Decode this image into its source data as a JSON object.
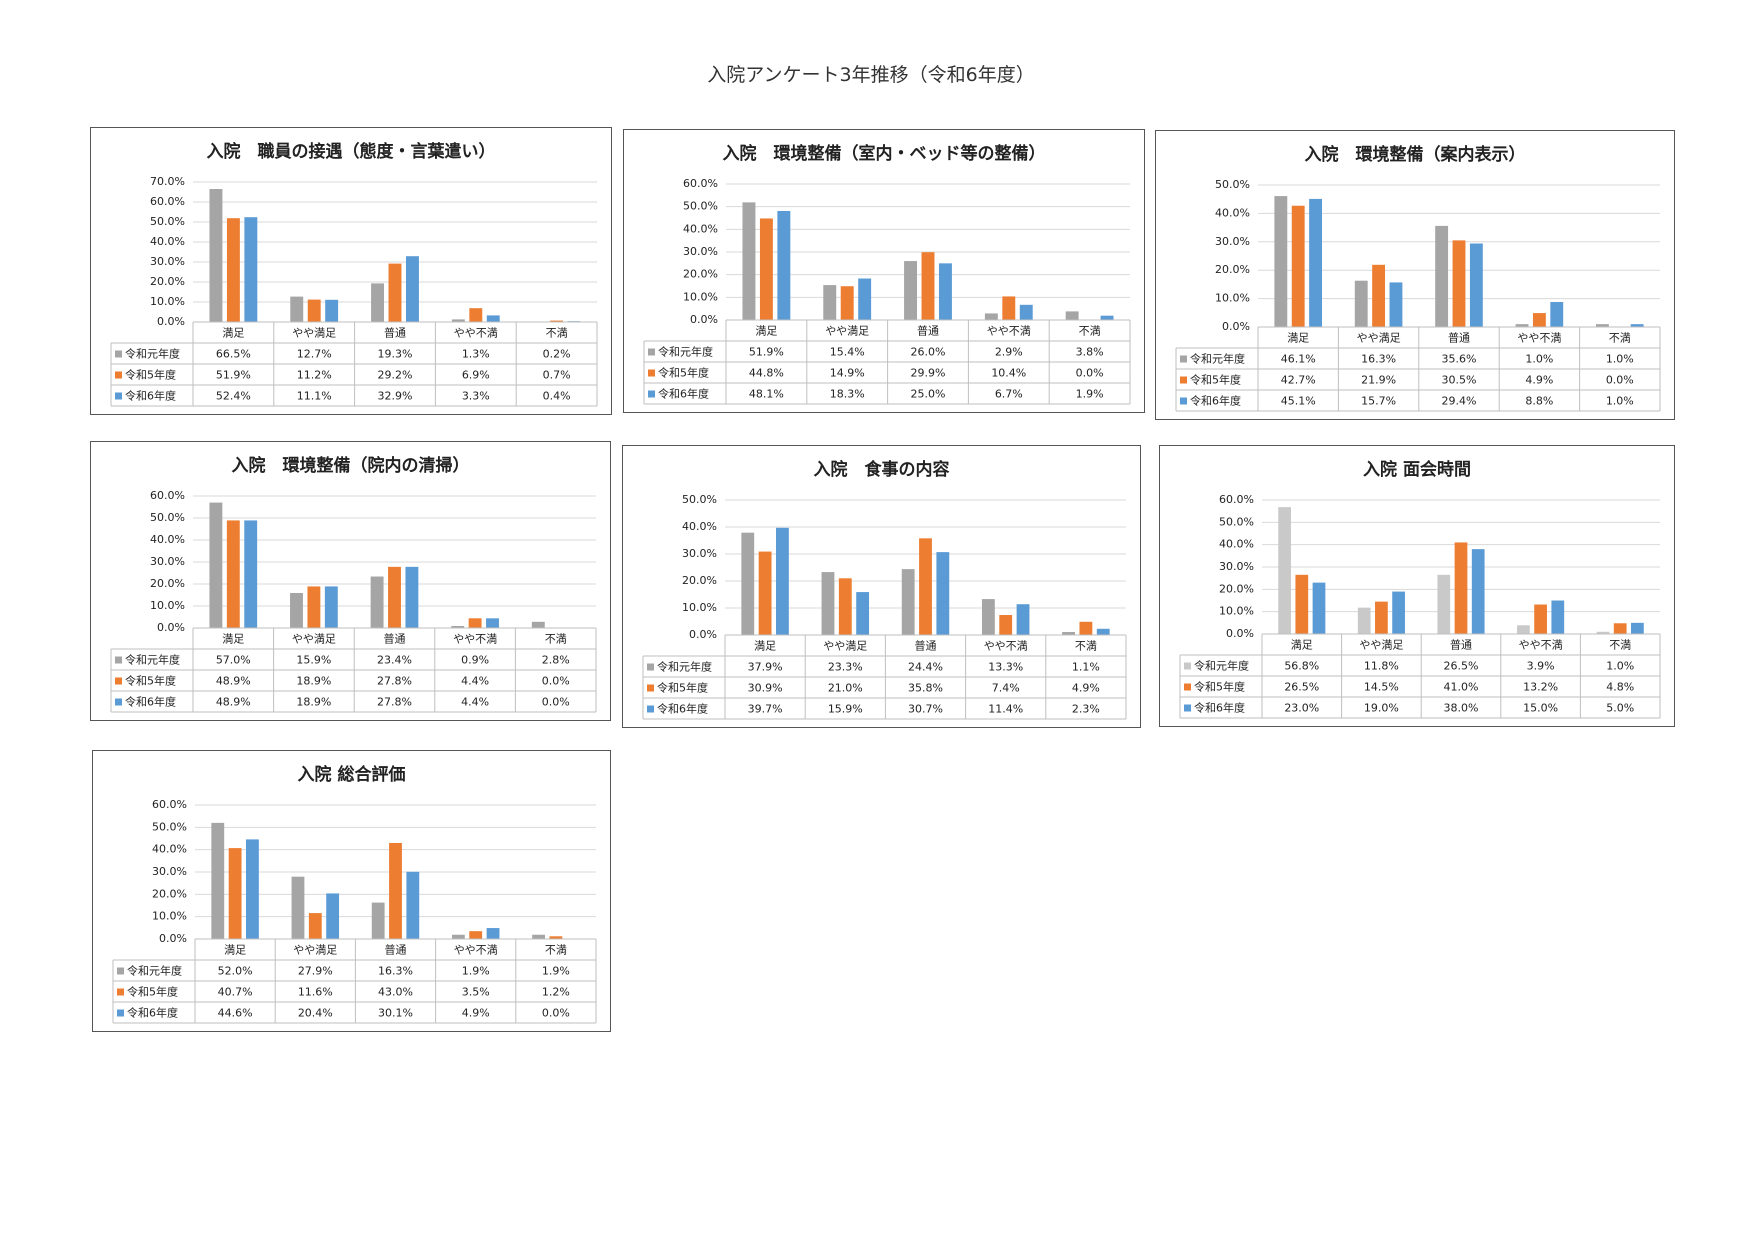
{
  "page": {
    "title": "入院アンケート3年推移（令和6年度）"
  },
  "legend_colors": {
    "令和元年度": "#a5a5a5",
    "令和5年度": "#ed7d31",
    "令和6年度": "#5b9bd5"
  },
  "chart_data": [
    {
      "type": "bar",
      "title": "入院　職員の接遇（態度・言葉遣い）",
      "categories": [
        "満足",
        "やや満足",
        "普通",
        "やや不満",
        "不満"
      ],
      "ylim": [
        0,
        70
      ],
      "ytick_step": 10,
      "ytick_labels": [
        "70.0%",
        "60.0%",
        "50.0%",
        "40.0%",
        "30.0%",
        "20.0%",
        "10.0%",
        "0.0%"
      ],
      "series": [
        {
          "name": "令和元年度",
          "color": "#a5a5a5",
          "values": [
            66.5,
            12.7,
            19.3,
            1.3,
            0.2
          ],
          "labels": [
            "66.5%",
            "12.7%",
            "19.3%",
            "1.3%",
            "0.2%"
          ]
        },
        {
          "name": "令和5年度",
          "color": "#ed7d31",
          "values": [
            51.9,
            11.2,
            29.2,
            6.9,
            0.7
          ],
          "labels": [
            "51.9%",
            "11.2%",
            "29.2%",
            "6.9%",
            "0.7%"
          ]
        },
        {
          "name": "令和6年度",
          "color": "#5b9bd5",
          "values": [
            52.4,
            11.1,
            32.9,
            3.3,
            0.4
          ],
          "labels": [
            "52.4%",
            "11.1%",
            "32.9%",
            "3.3%",
            "0.4%"
          ]
        }
      ]
    },
    {
      "type": "bar",
      "title": "入院　環境整備（室内・ベッド等の整備）",
      "categories": [
        "満足",
        "やや満足",
        "普通",
        "やや不満",
        "不満"
      ],
      "ylim": [
        0,
        60
      ],
      "ytick_step": 10,
      "ytick_labels": [
        "60.0%",
        "50.0%",
        "40.0%",
        "30.0%",
        "20.0%",
        "10.0%",
        "0.0%"
      ],
      "series": [
        {
          "name": "令和元年度",
          "color": "#a5a5a5",
          "values": [
            51.9,
            15.4,
            26.0,
            2.9,
            3.8
          ],
          "labels": [
            "51.9%",
            "15.4%",
            "26.0%",
            "2.9%",
            "3.8%"
          ]
        },
        {
          "name": "令和5年度",
          "color": "#ed7d31",
          "values": [
            44.8,
            14.9,
            29.9,
            10.4,
            0.0
          ],
          "labels": [
            "44.8%",
            "14.9%",
            "29.9%",
            "10.4%",
            "0.0%"
          ]
        },
        {
          "name": "令和6年度",
          "color": "#5b9bd5",
          "values": [
            48.1,
            18.3,
            25.0,
            6.7,
            1.9
          ],
          "labels": [
            "48.1%",
            "18.3%",
            "25.0%",
            "6.7%",
            "1.9%"
          ]
        }
      ]
    },
    {
      "type": "bar",
      "title": "入院　環境整備（案内表示）",
      "categories": [
        "満足",
        "やや満足",
        "普通",
        "やや不満",
        "不満"
      ],
      "ylim": [
        0,
        50
      ],
      "ytick_step": 10,
      "ytick_labels": [
        "50.0%",
        "40.0%",
        "30.0%",
        "20.0%",
        "10.0%",
        "0.0%"
      ],
      "series": [
        {
          "name": "令和元年度",
          "color": "#a5a5a5",
          "values": [
            46.1,
            16.3,
            35.6,
            1.0,
            1.0
          ],
          "labels": [
            "46.1%",
            "16.3%",
            "35.6%",
            "1.0%",
            "1.0%"
          ]
        },
        {
          "name": "令和5年度",
          "color": "#ed7d31",
          "values": [
            42.7,
            21.9,
            30.5,
            4.9,
            0.0
          ],
          "labels": [
            "42.7%",
            "21.9%",
            "30.5%",
            "4.9%",
            "0.0%"
          ]
        },
        {
          "name": "令和6年度",
          "color": "#5b9bd5",
          "values": [
            45.1,
            15.7,
            29.4,
            8.8,
            1.0
          ],
          "labels": [
            "45.1%",
            "15.7%",
            "29.4%",
            "8.8%",
            "1.0%"
          ]
        }
      ]
    },
    {
      "type": "bar",
      "title": "入院　環境整備（院内の清掃）",
      "categories": [
        "満足",
        "やや満足",
        "普通",
        "やや不満",
        "不満"
      ],
      "ylim": [
        0,
        60
      ],
      "ytick_step": 10,
      "ytick_labels": [
        "60.0%",
        "50.0%",
        "40.0%",
        "30.0%",
        "20.0%",
        "10.0%",
        "0.0%"
      ],
      "series": [
        {
          "name": "令和元年度",
          "color": "#a5a5a5",
          "values": [
            57.0,
            15.9,
            23.4,
            0.9,
            2.8
          ],
          "labels": [
            "57.0%",
            "15.9%",
            "23.4%",
            "0.9%",
            "2.8%"
          ]
        },
        {
          "name": "令和5年度",
          "color": "#ed7d31",
          "values": [
            48.9,
            18.9,
            27.8,
            4.4,
            0.0
          ],
          "labels": [
            "48.9%",
            "18.9%",
            "27.8%",
            "4.4%",
            "0.0%"
          ]
        },
        {
          "name": "令和6年度",
          "color": "#5b9bd5",
          "values": [
            48.9,
            18.9,
            27.8,
            4.4,
            0.0
          ],
          "labels": [
            "48.9%",
            "18.9%",
            "27.8%",
            "4.4%",
            "0.0%"
          ]
        }
      ]
    },
    {
      "type": "bar",
      "title": "入院　食事の内容",
      "categories": [
        "満足",
        "やや満足",
        "普通",
        "やや不満",
        "不満"
      ],
      "ylim": [
        0,
        50
      ],
      "ytick_step": 10,
      "ytick_labels": [
        "50.0%",
        "40.0%",
        "30.0%",
        "20.0%",
        "10.0%",
        "0.0%"
      ],
      "series": [
        {
          "name": "令和元年度",
          "color": "#a5a5a5",
          "values": [
            37.9,
            23.3,
            24.4,
            13.3,
            1.1
          ],
          "labels": [
            "37.9%",
            "23.3%",
            "24.4%",
            "13.3%",
            "1.1%"
          ]
        },
        {
          "name": "令和5年度",
          "color": "#ed7d31",
          "values": [
            30.9,
            21.0,
            35.8,
            7.4,
            4.9
          ],
          "labels": [
            "30.9%",
            "21.0%",
            "35.8%",
            "7.4%",
            "4.9%"
          ]
        },
        {
          "name": "令和6年度",
          "color": "#5b9bd5",
          "values": [
            39.7,
            15.9,
            30.7,
            11.4,
            2.3
          ],
          "labels": [
            "39.7%",
            "15.9%",
            "30.7%",
            "11.4%",
            "2.3%"
          ]
        }
      ]
    },
    {
      "type": "bar",
      "title": "入院 面会時間",
      "categories": [
        "満足",
        "やや満足",
        "普通",
        "やや不満",
        "不満"
      ],
      "ylim": [
        0,
        60
      ],
      "ytick_step": 10,
      "ytick_labels": [
        "60.0%",
        "50.0%",
        "40.0%",
        "30.0%",
        "20.0%",
        "10.0%",
        "0.0%"
      ],
      "series": [
        {
          "name": "令和元年度",
          "color": "#c9c9c9",
          "values": [
            56.8,
            11.8,
            26.5,
            3.9,
            1.0
          ],
          "labels": [
            "56.8%",
            "11.8%",
            "26.5%",
            "3.9%",
            "1.0%"
          ]
        },
        {
          "name": "令和5年度",
          "color": "#ed7d31",
          "values": [
            26.5,
            14.5,
            41.0,
            13.2,
            4.8
          ],
          "labels": [
            "26.5%",
            "14.5%",
            "41.0%",
            "13.2%",
            "4.8%"
          ]
        },
        {
          "name": "令和6年度",
          "color": "#5b9bd5",
          "values": [
            23.0,
            19.0,
            38.0,
            15.0,
            5.0
          ],
          "labels": [
            "23.0%",
            "19.0%",
            "38.0%",
            "15.0%",
            "5.0%"
          ]
        }
      ]
    },
    {
      "type": "bar",
      "title": "入院 総合評価",
      "categories": [
        "満足",
        "やや満足",
        "普通",
        "やや不満",
        "不満"
      ],
      "ylim": [
        0,
        60
      ],
      "ytick_step": 10,
      "ytick_labels": [
        "60.0%",
        "50.0%",
        "40.0%",
        "30.0%",
        "20.0%",
        "10.0%",
        "0.0%"
      ],
      "series": [
        {
          "name": "令和元年度",
          "color": "#a5a5a5",
          "values": [
            52.0,
            27.9,
            16.3,
            1.9,
            1.9
          ],
          "labels": [
            "52.0%",
            "27.9%",
            "16.3%",
            "1.9%",
            "1.9%"
          ]
        },
        {
          "name": "令和5年度",
          "color": "#ed7d31",
          "values": [
            40.7,
            11.6,
            43.0,
            3.5,
            1.2
          ],
          "labels": [
            "40.7%",
            "11.6%",
            "43.0%",
            "3.5%",
            "1.2%"
          ]
        },
        {
          "name": "令和6年度",
          "color": "#5b9bd5",
          "values": [
            44.6,
            20.4,
            30.1,
            4.9,
            0.0
          ],
          "labels": [
            "44.6%",
            "20.4%",
            "30.1%",
            "4.9%",
            "0.0%"
          ]
        }
      ]
    }
  ]
}
